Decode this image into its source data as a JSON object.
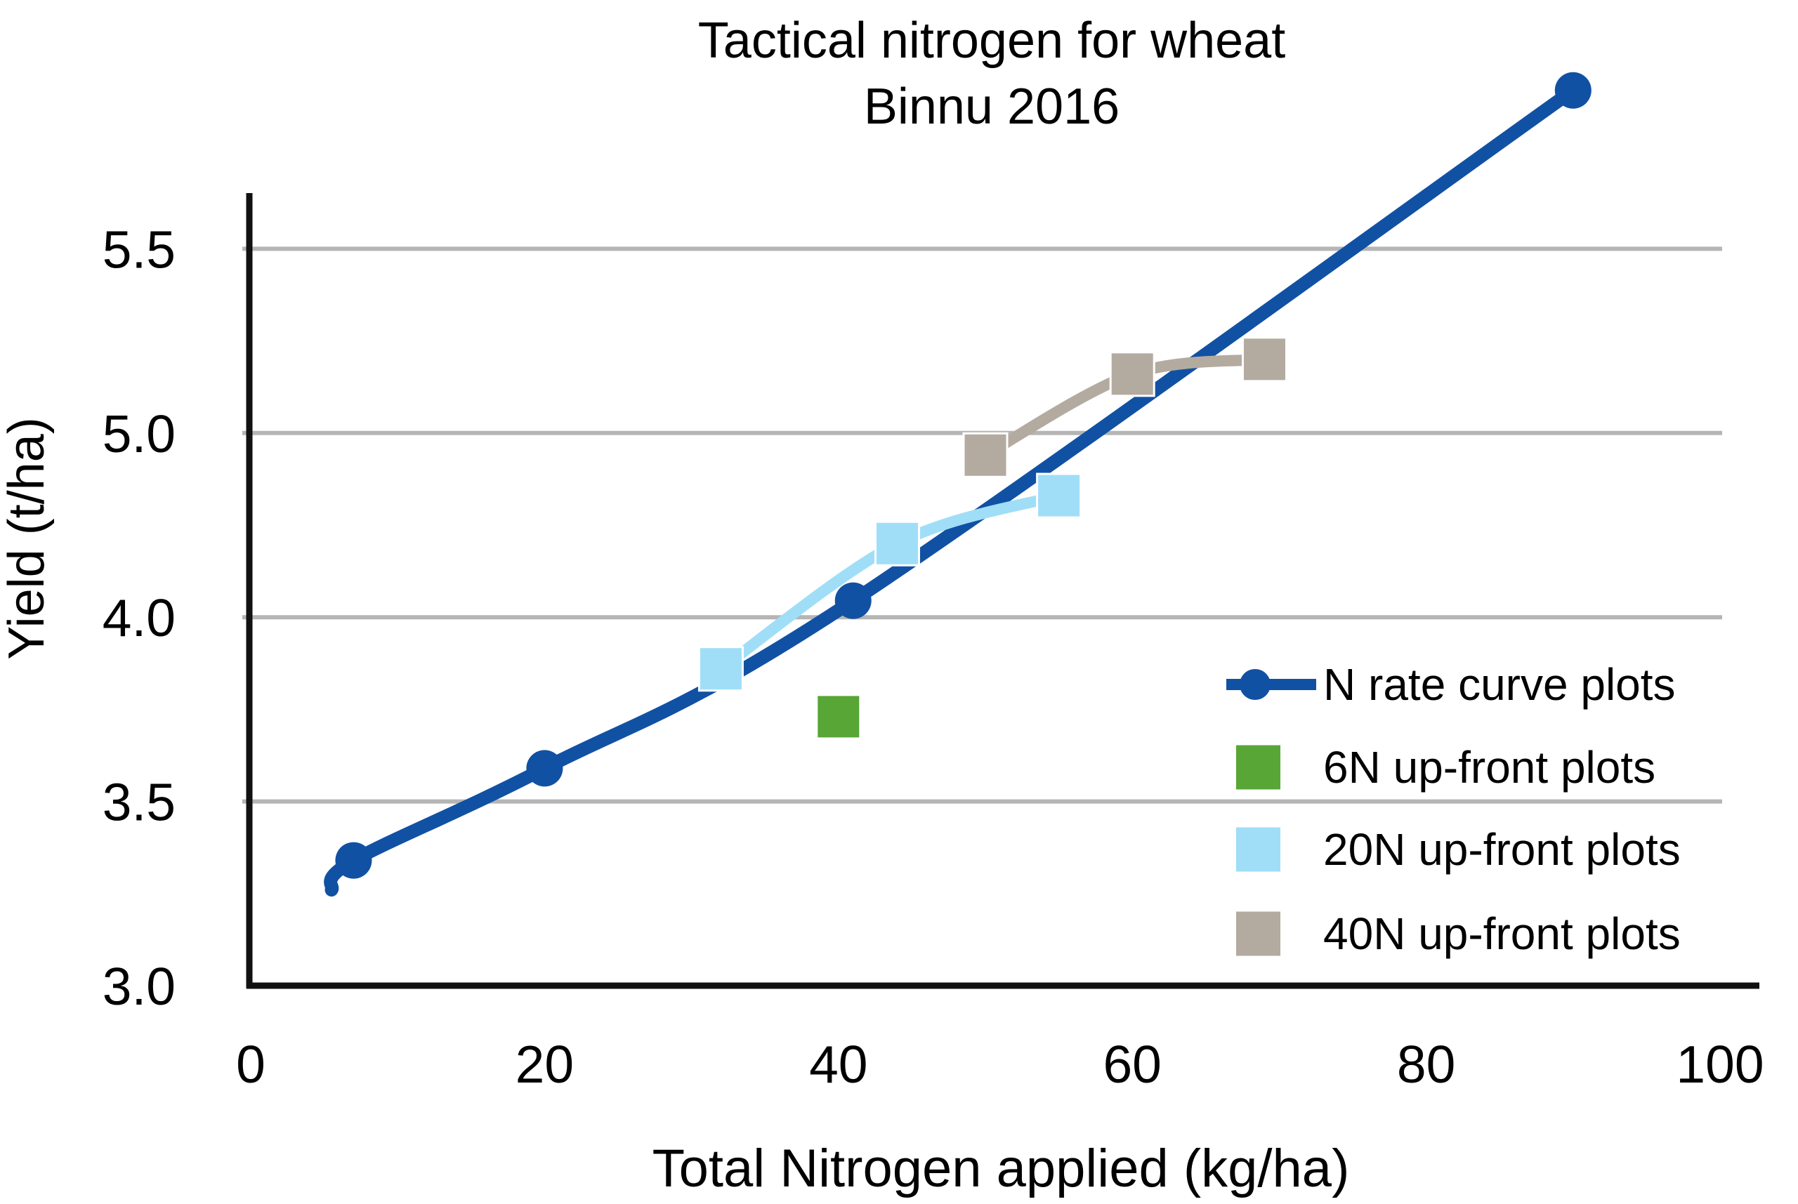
{
  "title": {
    "line1": "Tactical nitrogen for wheat",
    "line2": "Binnu 2016"
  },
  "axes": {
    "x": {
      "title": "Total Nitrogen applied (kg/ha)",
      "tick_labels": [
        "0",
        "20",
        "40",
        "60",
        "80",
        "100"
      ],
      "tick_values": [
        0,
        20,
        40,
        60,
        80,
        100
      ]
    },
    "y": {
      "title": "Yield (t/ha)",
      "tick_labels": [
        "3.0",
        "3.5",
        "4.0",
        "5.0",
        "5.5"
      ],
      "tick_values_as_printed": [
        3.0,
        3.5,
        4.0,
        5.0,
        5.5
      ]
    }
  },
  "legend": {
    "items": [
      {
        "label": "N rate curve plots",
        "marker": "line-circle",
        "color_key": "blue"
      },
      {
        "label": "6N up-front plots",
        "marker": "square",
        "color_key": "green"
      },
      {
        "label": "20N up-front plots",
        "marker": "square",
        "color_key": "light_blue"
      },
      {
        "label": "40N up-front plots",
        "marker": "square",
        "color_key": "gray"
      }
    ]
  },
  "chart_data": {
    "type": "line",
    "title": "Tactical nitrogen for wheat — Binnu 2016",
    "xlabel": "Total Nitrogen applied (kg/ha)",
    "ylabel": "Yield (t/ha)",
    "xlim": [
      0,
      100
    ],
    "x_ticks": [
      0,
      20,
      40,
      60,
      80,
      100
    ],
    "y_ticks_as_printed": [
      3.0,
      3.5,
      4.0,
      5.0,
      5.5
    ],
    "grid": "horizontal",
    "legend_position": "inside-lower-right",
    "axis_note": "y gridlines are evenly spaced exactly as printed; there is no 4.5 gridline",
    "series": [
      {
        "name": "N rate curve plots",
        "style": "smooth-line-with-circle-markers",
        "color_key": "blue",
        "line_start": [
          5.5,
          3.26
        ],
        "points": [
          [
            7,
            3.34
          ],
          [
            20,
            3.59
          ],
          [
            41,
            4.09
          ],
          [
            90,
            5.93
          ]
        ]
      },
      {
        "name": "6N up-front plots",
        "style": "square-marker-only",
        "color_key": "green",
        "points": [
          [
            40,
            3.73
          ]
        ]
      },
      {
        "name": "20N up-front plots",
        "style": "smooth-line-with-square-markers",
        "color_key": "light_blue",
        "points": [
          [
            32,
            3.86
          ],
          [
            44,
            4.4
          ],
          [
            55,
            4.66
          ]
        ]
      },
      {
        "name": "40N up-front plots",
        "style": "smooth-line-with-square-markers",
        "color_key": "gray",
        "points": [
          [
            50,
            4.88
          ],
          [
            60,
            5.16
          ],
          [
            69,
            5.2
          ]
        ]
      }
    ]
  },
  "colors": {
    "blue": "#1151A4",
    "green": "#58A636",
    "light_blue": "#A0DEF8",
    "gray": "#B3ABA0",
    "gridline": "#B5B5B5",
    "axis": "#111111",
    "text": "#000000"
  }
}
